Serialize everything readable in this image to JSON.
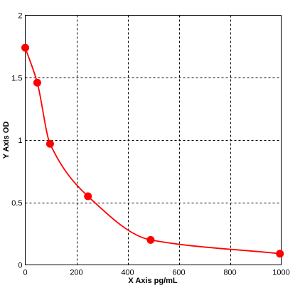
{
  "chart_data": {
    "type": "scatter",
    "title": "",
    "xlabel": "X Axis pg/mL",
    "ylabel": "Y Axis OD",
    "xlim": [
      0,
      1000
    ],
    "ylim": [
      0,
      2
    ],
    "x_ticks": [
      0,
      200,
      400,
      600,
      800,
      1000
    ],
    "y_ticks": [
      0,
      0.5,
      1,
      1.5,
      2
    ],
    "x_tick_labels": [
      "0",
      "200",
      "400",
      "600",
      "800",
      "1000"
    ],
    "y_tick_labels": [
      "0",
      "0.5",
      "1",
      "1.5",
      "2"
    ],
    "grid": true,
    "grid_style": "dashed",
    "series": [
      {
        "points": [
          {
            "x": 0,
            "y": 1.74
          },
          {
            "x": 47,
            "y": 1.46
          },
          {
            "x": 97,
            "y": 0.97
          },
          {
            "x": 245,
            "y": 0.55
          },
          {
            "x": 490,
            "y": 0.2
          },
          {
            "x": 995,
            "y": 0.09
          }
        ],
        "color": "#ff0000",
        "fit_curve": true
      }
    ]
  }
}
